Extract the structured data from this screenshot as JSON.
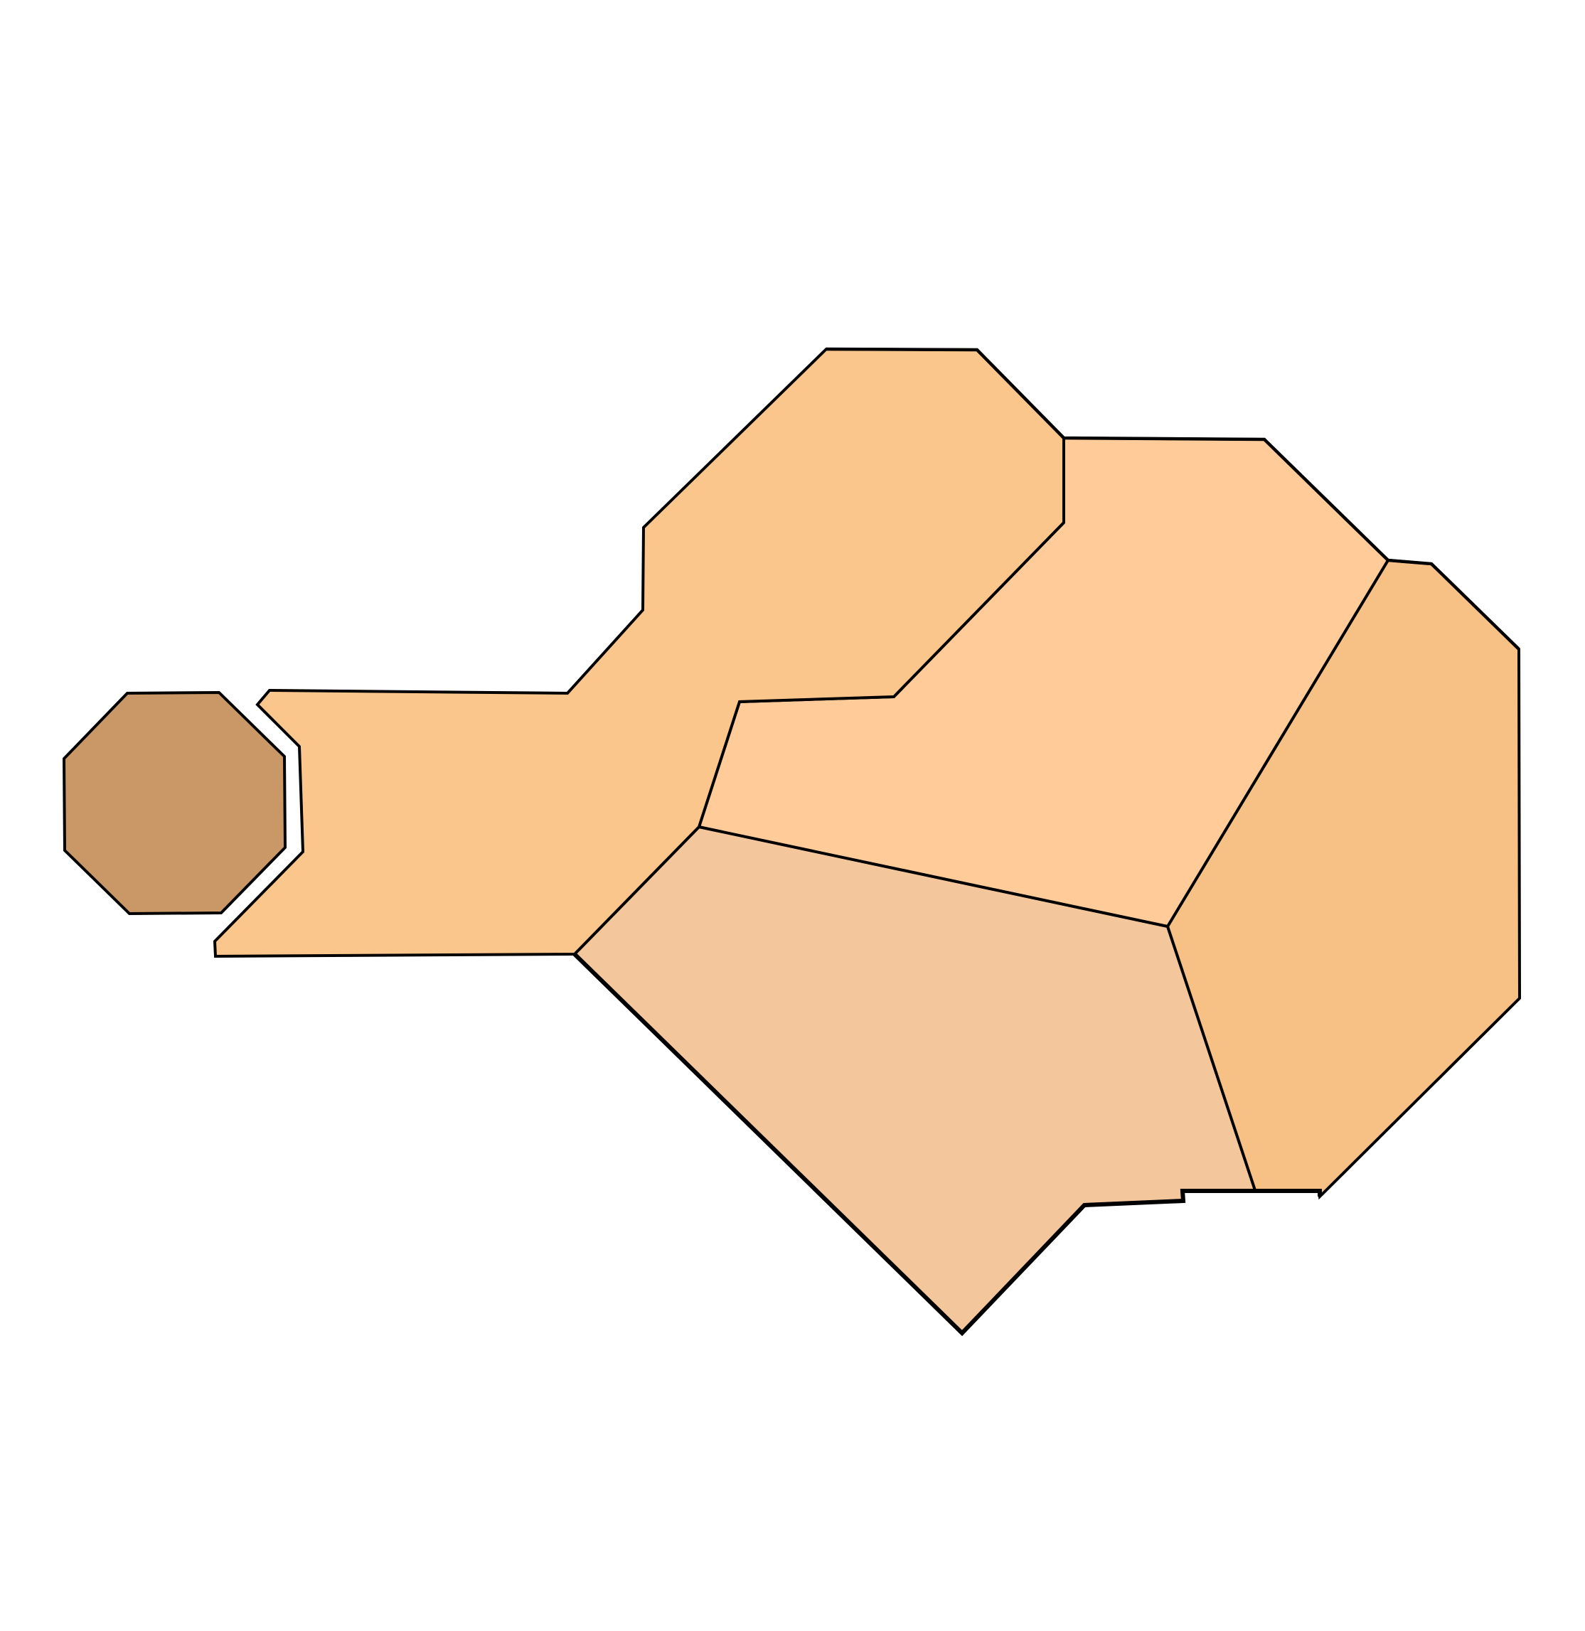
{
  "map": {
    "regions": [
      {
        "id": "octagon-west",
        "color": "#CA9866"
      },
      {
        "id": "region-northwest",
        "color": "#FBC68B"
      },
      {
        "id": "region-north-central",
        "color": "#FECB99"
      },
      {
        "id": "region-east",
        "color": "#F7C085"
      },
      {
        "id": "region-south",
        "color": "#F3C69B"
      }
    ],
    "border_color": "#000000",
    "background_color": "#FFFFFF"
  }
}
